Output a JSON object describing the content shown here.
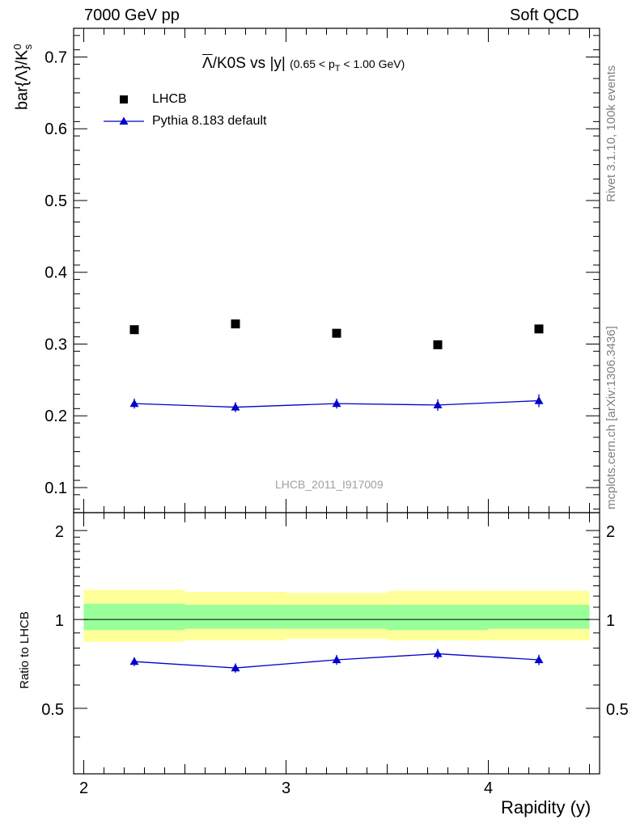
{
  "header": {
    "left": "7000 GeV pp",
    "right": "Soft QCD"
  },
  "side_labels": {
    "rivet": "Rivet 3.1.10,  100k events",
    "mcplots": "mcplots.cern.ch [arXiv:1306.3436]"
  },
  "watermark": "LHCB_2011_I917009",
  "chart_data": [
    {
      "type": "scatter",
      "panel": "main",
      "title": "Λ/K0S vs |y|",
      "title_bar_char": "Λ",
      "title_rest": "/K0S vs |y|",
      "title_cut": "(0.65 < p",
      "title_cut_sub": "T",
      "title_cut_end": " < 1.00 GeV)",
      "ylabel": "bar{Λ}/K",
      "ylabel_sup": "0",
      "ylabel_sub": "s",
      "ylim": [
        0.065,
        0.74
      ],
      "yticks": [
        0.1,
        0.2,
        0.3,
        0.4,
        0.5,
        0.6,
        0.7
      ],
      "ytick_labels": [
        "0.1",
        "0.2",
        "0.3",
        "0.4",
        "0.5",
        "0.6",
        "0.7"
      ],
      "xlim": [
        1.95,
        4.55
      ],
      "series": [
        {
          "name": "LHCB",
          "marker": "square",
          "color": "#000000",
          "x": [
            2.25,
            2.75,
            3.25,
            3.75,
            4.25
          ],
          "y": [
            0.32,
            0.328,
            0.315,
            0.299,
            0.321
          ],
          "yerr": [
            0.0,
            0.0,
            0.0,
            0.0,
            0.0
          ]
        },
        {
          "name": "Pythia 8.183 default",
          "marker": "triangle",
          "color": "#0000cc",
          "x": [
            2.25,
            2.75,
            3.25,
            3.75,
            4.25
          ],
          "y": [
            0.217,
            0.212,
            0.217,
            0.215,
            0.221
          ],
          "yerr": [
            0.007,
            0.007,
            0.007,
            0.008,
            0.009
          ]
        }
      ]
    },
    {
      "type": "scatter",
      "panel": "ratio",
      "ylabel": "Ratio to LHCB",
      "xlabel": "Rapidity (y)",
      "ylim": [
        0.3,
        2.3
      ],
      "yticks": [
        0.5,
        1,
        2
      ],
      "ytick_labels": [
        "0.5",
        "1",
        "2"
      ],
      "xlim": [
        1.95,
        4.55
      ],
      "xticks": [
        2,
        3,
        4
      ],
      "xtick_labels": [
        "2",
        "3",
        "4"
      ],
      "bands": {
        "edges": [
          2.0,
          2.5,
          3.0,
          3.5,
          4.0,
          4.5
        ],
        "yellow_lo": [
          0.84,
          0.85,
          0.86,
          0.85,
          0.85
        ],
        "yellow_hi": [
          1.26,
          1.24,
          1.23,
          1.25,
          1.25
        ],
        "green_lo": [
          0.92,
          0.93,
          0.93,
          0.92,
          0.93
        ],
        "green_hi": [
          1.13,
          1.12,
          1.12,
          1.12,
          1.12
        ],
        "yellow_color": "#ffff99",
        "green_color": "#99ff99"
      },
      "series": [
        {
          "name": "Pythia 8.183 default",
          "color": "#0000cc",
          "x": [
            2.25,
            2.75,
            3.25,
            3.75,
            4.25
          ],
          "y": [
            0.72,
            0.685,
            0.73,
            0.765,
            0.73
          ],
          "yerr": [
            0.025,
            0.025,
            0.028,
            0.03,
            0.03
          ]
        }
      ]
    }
  ]
}
